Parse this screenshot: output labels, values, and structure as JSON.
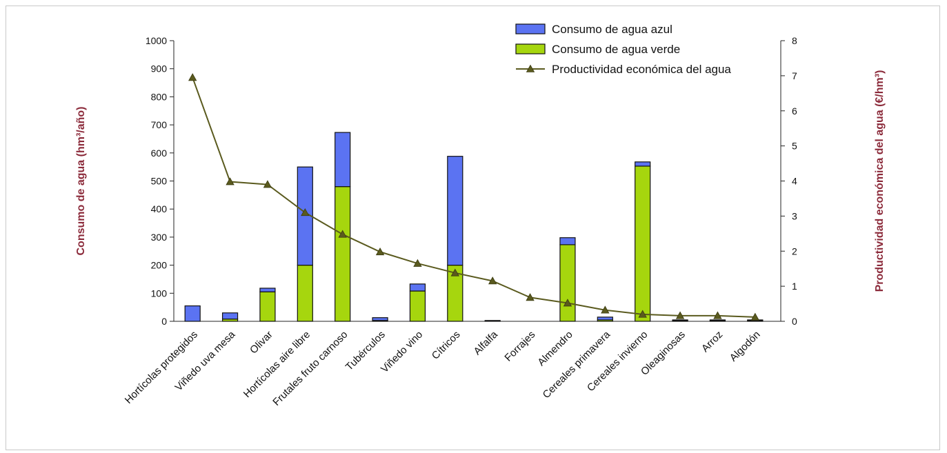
{
  "chart_data": {
    "type": "bar",
    "categories": [
      "Hortícolas protegidos",
      "Viñedo uva mesa",
      "Olivar",
      "Hortícolas aire libre",
      "Frutales fruto carnoso",
      "Tubérculos",
      "Viñedo vino",
      "Cítricos",
      "Alfalfa",
      "Forrajes",
      "Almendro",
      "Cereales primavera",
      "Cereales invierno",
      "Oleaginosas",
      "Arroz",
      "Algodón"
    ],
    "series": [
      {
        "name": "Consumo de agua verde",
        "kind": "bar",
        "axis": "left",
        "color": "#a6d60e",
        "values": [
          0,
          8,
          105,
          200,
          480,
          3,
          108,
          200,
          0,
          0,
          273,
          5,
          553,
          3,
          3,
          3
        ]
      },
      {
        "name": "Consumo de agua azul",
        "kind": "bar",
        "axis": "left",
        "color": "#5b73f2",
        "values": [
          55,
          22,
          13,
          350,
          193,
          10,
          25,
          388,
          3,
          0,
          25,
          10,
          15,
          2,
          2,
          2
        ]
      },
      {
        "name": "Productividad económica del agua",
        "kind": "line",
        "axis": "right",
        "color": "#5a5a1e",
        "values": [
          6.95,
          3.98,
          3.9,
          3.1,
          2.48,
          1.98,
          1.65,
          1.38,
          1.15,
          0.68,
          0.52,
          0.32,
          0.2,
          0.16,
          0.16,
          0.12
        ]
      }
    ],
    "ylabel": "Consumo de agua (hm³/año)",
    "y2label": "Productividad económica del agua (€/hm³)",
    "ylim": [
      0,
      1000
    ],
    "yticks": [
      "0",
      "100",
      "200",
      "300",
      "400",
      "500",
      "600",
      "700",
      "800",
      "900",
      "1000"
    ],
    "y2lim": [
      0,
      8
    ],
    "y2ticks": [
      "0",
      "1",
      "2",
      "3",
      "4",
      "5",
      "6",
      "7",
      "8"
    ],
    "legend": {
      "placement": "top-right",
      "entries": [
        "Consumo de agua azul",
        "Consumo de agua verde",
        "Productividad económica del agua"
      ]
    },
    "grid": false
  }
}
